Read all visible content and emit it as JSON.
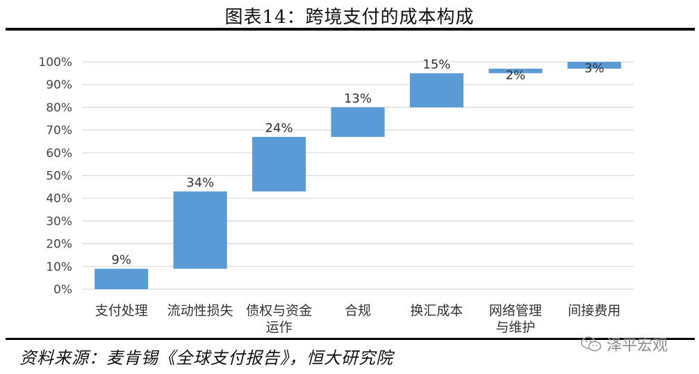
{
  "header": {
    "title": "图表14：跨境支付的成本构成"
  },
  "footer": {
    "source": "资料来源：麦肯锡《全球支付报告》，恒大研究院",
    "watermark": "泽平宏观",
    "watermark_icon": "wechat-icon"
  },
  "colors": {
    "bar": "#5B9BD5",
    "grid": "#d9d9d9",
    "rule": "#000000"
  },
  "chart_data": {
    "type": "waterfall",
    "title": "",
    "xlabel": "",
    "ylabel": "",
    "ylim": [
      0,
      100
    ],
    "yticks": [
      "0%",
      "10%",
      "20%",
      "30%",
      "40%",
      "50%",
      "60%",
      "70%",
      "80%",
      "90%",
      "100%"
    ],
    "grid": true,
    "categories": [
      [
        "支付处理"
      ],
      [
        "流动性损失"
      ],
      [
        "债权与资金",
        "运作"
      ],
      [
        "合规"
      ],
      [
        "换汇成本"
      ],
      [
        "网络管理",
        "与维护"
      ],
      [
        "间接费用"
      ]
    ],
    "values": [
      9,
      34,
      24,
      13,
      15,
      2,
      3
    ],
    "labels": [
      "9%",
      "34%",
      "24%",
      "13%",
      "15%",
      "2%",
      "3%"
    ]
  }
}
